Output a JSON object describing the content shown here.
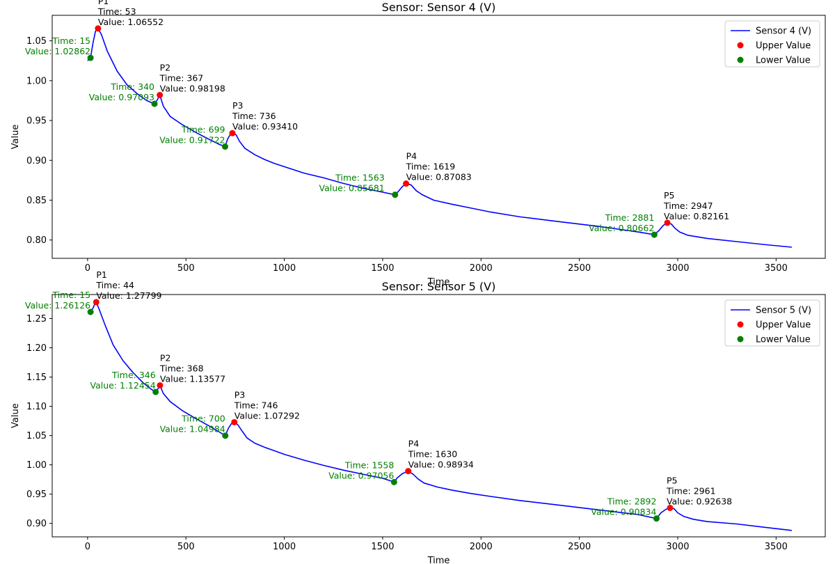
{
  "chart_data": [
    {
      "type": "line",
      "title": "Sensor: Sensor 4 (V)",
      "xlabel": "Time",
      "ylabel": "Value",
      "xlim": [
        -180,
        3750
      ],
      "ylim": [
        0.777,
        1.082
      ],
      "xticks": [
        0,
        500,
        1000,
        1500,
        2000,
        2500,
        3000,
        3500
      ],
      "xtick_labels": [
        "0",
        "500",
        "1000",
        "1500",
        "2000",
        "2500",
        "3000",
        "3500"
      ],
      "yticks": [
        0.8,
        0.85,
        0.9,
        0.95,
        1.0,
        1.05
      ],
      "ytick_labels": [
        "0.80",
        "0.85",
        "0.90",
        "0.95",
        "1.00",
        "1.05"
      ],
      "grid": false,
      "legend_position": "top-right",
      "legend": [
        "Sensor 4 (V)",
        "Upper Value",
        "Lower Value"
      ],
      "series": [
        {
          "name": "Sensor 4 (V)",
          "color": "#0000ff",
          "x": [
            0,
            15,
            28,
            40,
            53,
            70,
            100,
            150,
            200,
            250,
            300,
            340,
            355,
            367,
            385,
            420,
            480,
            550,
            620,
            670,
            699,
            712,
            725,
            736,
            755,
            772,
            800,
            850,
            900,
            950,
            1000,
            1100,
            1200,
            1300,
            1400,
            1500,
            1563,
            1580,
            1600,
            1619,
            1645,
            1670,
            1700,
            1760,
            1850,
            1950,
            2050,
            2200,
            2400,
            2600,
            2800,
            2881,
            2905,
            2925,
            2947,
            2968,
            2985,
            3010,
            3050,
            3150,
            3300,
            3450,
            3580
          ],
          "y": [
            1.025,
            1.0286,
            1.048,
            1.062,
            1.0655,
            1.058,
            1.037,
            1.012,
            0.995,
            0.984,
            0.975,
            0.9709,
            0.976,
            0.982,
            0.968,
            0.955,
            0.945,
            0.935,
            0.926,
            0.92,
            0.9172,
            0.927,
            0.932,
            0.9341,
            0.932,
            0.924,
            0.915,
            0.907,
            0.901,
            0.896,
            0.892,
            0.884,
            0.878,
            0.871,
            0.865,
            0.86,
            0.8568,
            0.861,
            0.867,
            0.8708,
            0.869,
            0.862,
            0.857,
            0.85,
            0.845,
            0.84,
            0.835,
            0.829,
            0.823,
            0.817,
            0.81,
            0.8066,
            0.812,
            0.818,
            0.8216,
            0.82,
            0.815,
            0.81,
            0.806,
            0.802,
            0.798,
            0.794,
            0.791
          ]
        },
        {
          "name": "Upper Value",
          "color": "#ff0000",
          "points": [
            {
              "label": "P1",
              "time": 53,
              "value": 1.06552,
              "text_time": "Time: 53",
              "text_value": "Value: 1.06552"
            },
            {
              "label": "P2",
              "time": 367,
              "value": 0.98198,
              "text_time": "Time: 367",
              "text_value": "Value: 0.98198"
            },
            {
              "label": "P3",
              "time": 736,
              "value": 0.9341,
              "text_time": "Time: 736",
              "text_value": "Value: 0.93410"
            },
            {
              "label": "P4",
              "time": 1619,
              "value": 0.87083,
              "text_time": "Time: 1619",
              "text_value": "Value: 0.87083"
            },
            {
              "label": "P5",
              "time": 2947,
              "value": 0.82161,
              "text_time": "Time: 2947",
              "text_value": "Value: 0.82161"
            }
          ]
        },
        {
          "name": "Lower Value",
          "color": "#008000",
          "points": [
            {
              "time": 15,
              "value": 1.02862,
              "text_time": "Time: 15",
              "text_value": "Value: 1.02862"
            },
            {
              "time": 340,
              "value": 0.97093,
              "text_time": "Time: 340",
              "text_value": "Value: 0.97093"
            },
            {
              "time": 699,
              "value": 0.91722,
              "text_time": "Time: 699",
              "text_value": "Value: 0.91722"
            },
            {
              "time": 1563,
              "value": 0.85681,
              "text_time": "Time: 1563",
              "text_value": "Value: 0.85681"
            },
            {
              "time": 2881,
              "value": 0.80662,
              "text_time": "Time: 2881",
              "text_value": "Value: 0.80662"
            }
          ]
        }
      ]
    },
    {
      "type": "line",
      "title": "Sensor: Sensor 5 (V)",
      "xlabel": "Time",
      "ylabel": "Value",
      "xlim": [
        -180,
        3750
      ],
      "ylim": [
        0.877,
        1.291
      ],
      "xticks": [
        0,
        500,
        1000,
        1500,
        2000,
        2500,
        3000,
        3500
      ],
      "xtick_labels": [
        "0",
        "500",
        "1000",
        "1500",
        "2000",
        "2500",
        "3000",
        "3500"
      ],
      "yticks": [
        0.9,
        0.95,
        1.0,
        1.05,
        1.1,
        1.15,
        1.2,
        1.25
      ],
      "ytick_labels": [
        "0.90",
        "0.95",
        "1.00",
        "1.05",
        "1.10",
        "1.15",
        "1.20",
        "1.25"
      ],
      "grid": false,
      "legend_position": "top-right",
      "legend": [
        "Sensor 5 (V)",
        "Upper Value",
        "Lower Value"
      ],
      "series": [
        {
          "name": "Sensor 5 (V)",
          "color": "#0000ff",
          "x": [
            15,
            28,
            38,
            44,
            60,
            90,
            130,
            180,
            230,
            280,
            320,
            346,
            358,
            368,
            385,
            420,
            480,
            550,
            620,
            670,
            700,
            715,
            730,
            746,
            765,
            785,
            810,
            850,
            900,
            950,
            1000,
            1100,
            1200,
            1300,
            1400,
            1500,
            1558,
            1575,
            1600,
            1630,
            1655,
            1680,
            1710,
            1780,
            1850,
            1950,
            2050,
            2200,
            2400,
            2600,
            2800,
            2892,
            2915,
            2940,
            2961,
            2982,
            3000,
            3030,
            3080,
            3150,
            3300,
            3450,
            3580
          ],
          "y": [
            1.2613,
            1.268,
            1.276,
            1.278,
            1.265,
            1.238,
            1.205,
            1.178,
            1.158,
            1.141,
            1.13,
            1.1245,
            1.13,
            1.1358,
            1.122,
            1.108,
            1.093,
            1.079,
            1.066,
            1.056,
            1.0498,
            1.062,
            1.07,
            1.0729,
            1.068,
            1.058,
            1.046,
            1.037,
            1.03,
            1.024,
            1.018,
            1.008,
            0.999,
            0.991,
            0.984,
            0.977,
            0.9706,
            0.978,
            0.985,
            0.9893,
            0.984,
            0.976,
            0.969,
            0.962,
            0.957,
            0.951,
            0.946,
            0.939,
            0.931,
            0.923,
            0.915,
            0.9083,
            0.918,
            0.924,
            0.9264,
            0.925,
            0.918,
            0.912,
            0.907,
            0.903,
            0.899,
            0.893,
            0.888
          ]
        },
        {
          "name": "Upper Value",
          "color": "#ff0000",
          "points": [
            {
              "label": "P1",
              "time": 44,
              "value": 1.27799,
              "text_time": "Time: 44",
              "text_value": "Value: 1.27799"
            },
            {
              "label": "P2",
              "time": 368,
              "value": 1.13577,
              "text_time": "Time: 368",
              "text_value": "Value: 1.13577"
            },
            {
              "label": "P3",
              "time": 746,
              "value": 1.07292,
              "text_time": "Time: 746",
              "text_value": "Value: 1.07292"
            },
            {
              "label": "P4",
              "time": 1630,
              "value": 0.98934,
              "text_time": "Time: 1630",
              "text_value": "Value: 0.98934"
            },
            {
              "label": "P5",
              "time": 2961,
              "value": 0.92638,
              "text_time": "Time: 2961",
              "text_value": "Value: 0.92638"
            }
          ]
        },
        {
          "name": "Lower Value",
          "color": "#008000",
          "points": [
            {
              "time": 15,
              "value": 1.26126,
              "text_time": "Time: 15",
              "text_value": "Value: 1.26126"
            },
            {
              "time": 346,
              "value": 1.12454,
              "text_time": "Time: 346",
              "text_value": "Value: 1.12454"
            },
            {
              "time": 700,
              "value": 1.04984,
              "text_time": "Time: 700",
              "text_value": "Value: 1.04984"
            },
            {
              "time": 1558,
              "value": 0.97056,
              "text_time": "Time: 1558",
              "text_value": "Value: 0.97056"
            },
            {
              "time": 2892,
              "value": 0.90834,
              "text_time": "Time: 2892",
              "text_value": "Value: 0.90834"
            }
          ]
        }
      ]
    }
  ]
}
